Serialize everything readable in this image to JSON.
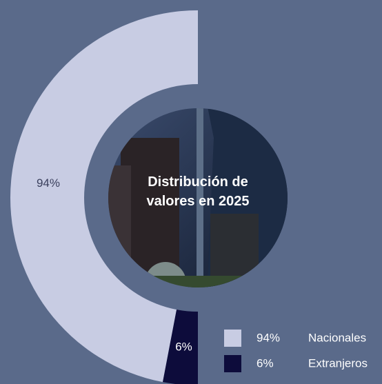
{
  "chart_data": {
    "type": "pie",
    "title": "Distribución de valores en 2025",
    "categories": [
      "Nacionales",
      "Extranjeros"
    ],
    "values": [
      94,
      6
    ],
    "value_labels": [
      "94%",
      "6%"
    ],
    "colors": [
      "#c8cce3",
      "#0d0c3b"
    ]
  }
}
